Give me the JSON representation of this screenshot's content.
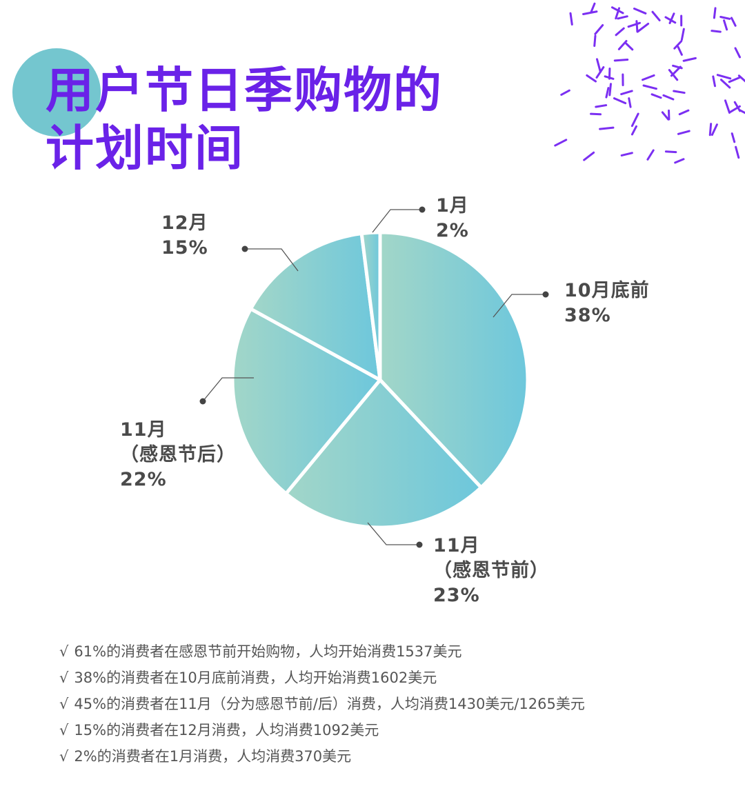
{
  "title": {
    "line1": "用户节日季购物的",
    "line2": "计划时间"
  },
  "colors": {
    "title": "#6a22e8",
    "circle": "#74c6cf",
    "confetti": "#7b2ff2",
    "pie_gradient": [
      "#a2d6c8",
      "#6dc7dc"
    ]
  },
  "chart_data": {
    "type": "pie",
    "slices": [
      {
        "label_lines": [
          "10月底前",
          "38%"
        ],
        "value": 38
      },
      {
        "label_lines": [
          "11月",
          "（感恩节前）",
          "23%"
        ],
        "value": 23
      },
      {
        "label_lines": [
          "11月",
          "（感恩节后）",
          "22%"
        ],
        "value": 22
      },
      {
        "label_lines": [
          "12月",
          "15%"
        ],
        "value": 15
      },
      {
        "label_lines": [
          "1月",
          "2%"
        ],
        "value": 2
      }
    ]
  },
  "notes": {
    "check": "√",
    "items": [
      "61%的消费者在感恩节前开始购物，人均开始消费1537美元",
      "38%的消费者在10月底前消费，人均开始消费1602美元",
      "45%的消费者在11月（分为感恩节前/后）消费，人均消费1430美元/1265美元",
      "15%的消费者在12月消费，人均消费1092美元",
      "2%的消费者在1月消费，人均消费370美元"
    ]
  }
}
